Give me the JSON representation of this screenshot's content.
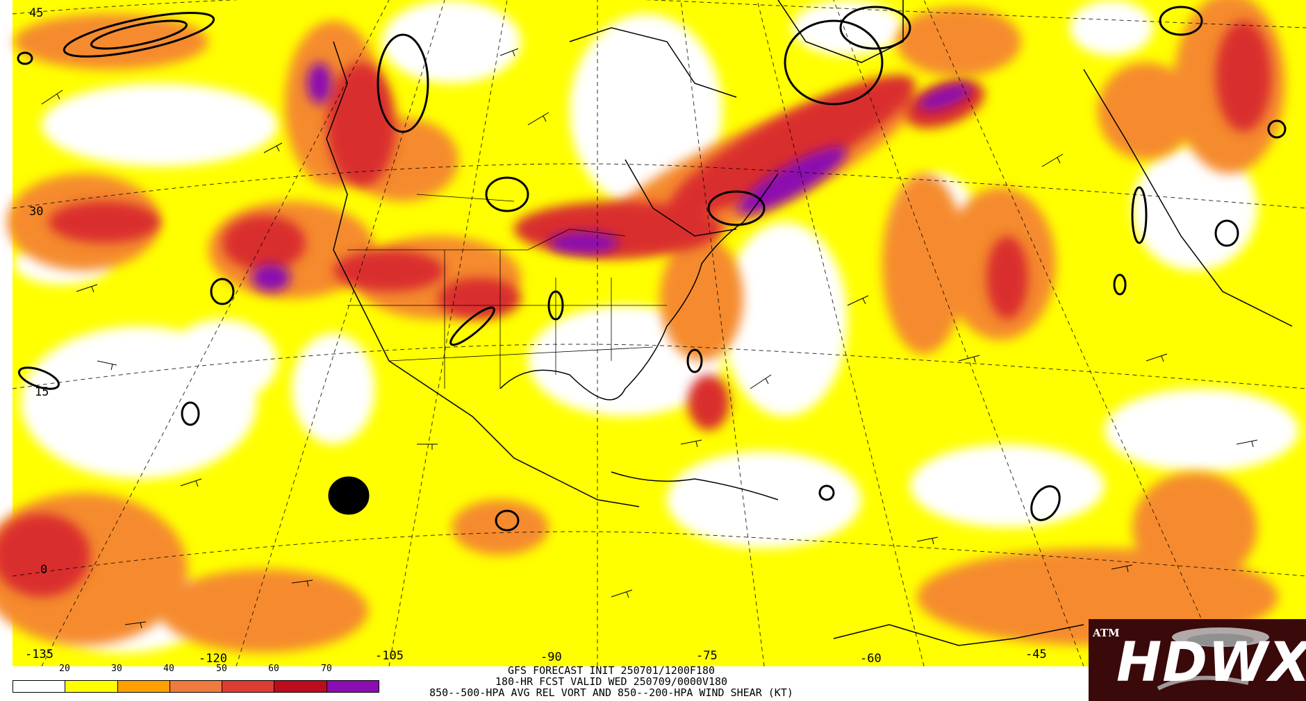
{
  "map": {
    "projection": "polar stereographic",
    "region": "North Atlantic / North America / eastern Pacific",
    "latitude_labels": [
      "45",
      "30",
      "15",
      "0"
    ],
    "longitude_labels": [
      "-135",
      "-120",
      "-105",
      "-90",
      "-75",
      "-60",
      "-45"
    ],
    "shading_colors": {
      "lt20": "#ffffff",
      "20-30": "#ffff00",
      "30-40": "#ff9f00",
      "40-50": "#ee7f4a",
      "50-60": "#e0463a",
      "60-70": "#c41322",
      "gt70": "#8b0cb0"
    },
    "overlays": [
      "wind barbs",
      "vorticity contours",
      "coastlines",
      "political boundaries",
      "lat/lon grid"
    ]
  },
  "legend": {
    "ticks": [
      "20",
      "30",
      "40",
      "50",
      "60",
      "70"
    ],
    "colors": [
      "#ffffff",
      "#ffff00",
      "#ffa000",
      "#f07a3e",
      "#dd3d32",
      "#bd0c1d",
      "#8b0cb0"
    ]
  },
  "caption": {
    "line1": "GFS FORECAST INIT 250701/1200F180",
    "line2": "180-HR FCST VALID WED 250709/0000V180",
    "line3": "850--500-HPA AVG REL VORT AND 850--200-HPA WIND SHEAR (KT)"
  },
  "logo": {
    "text": "HDWX",
    "emblem": "ATM",
    "background": "#3a0a0a"
  }
}
